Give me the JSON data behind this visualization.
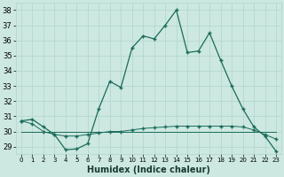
{
  "xlabel": "Humidex (Indice chaleur)",
  "bg_color": "#cce8e0",
  "grid_color": "#b0d4cc",
  "line_color": "#1a6b5a",
  "hours": [
    0,
    1,
    2,
    3,
    4,
    5,
    6,
    7,
    8,
    9,
    10,
    11,
    12,
    13,
    14,
    15,
    16,
    17,
    18,
    19,
    20,
    21,
    22,
    23
  ],
  "humidex_main": [
    30.7,
    30.8,
    30.3,
    29.8,
    28.8,
    28.85,
    29.2,
    31.5,
    33.3,
    32.9,
    35.5,
    36.3,
    36.1,
    37.0,
    38.0,
    35.2,
    35.3,
    36.5,
    34.7,
    33.0,
    31.5,
    30.3,
    29.7,
    28.7
  ],
  "humidex_ref": [
    30.7,
    30.5,
    30.0,
    29.8,
    29.7,
    29.7,
    29.8,
    29.9,
    30.0,
    30.0,
    30.1,
    30.2,
    30.25,
    30.3,
    30.35,
    30.35,
    30.35,
    30.35,
    30.35,
    30.35,
    30.3,
    30.1,
    29.8,
    29.5
  ],
  "humidex_flat": [
    30.0,
    30.0,
    30.0,
    30.0,
    30.0,
    30.0,
    30.0,
    30.0,
    30.0,
    30.0,
    30.0,
    30.0,
    30.0,
    30.0,
    30.0,
    30.0,
    30.0,
    30.0,
    30.0,
    30.0,
    30.0,
    30.0,
    30.0,
    30.0
  ],
  "ylim": [
    28.5,
    38.5
  ],
  "yticks": [
    29,
    30,
    31,
    32,
    33,
    34,
    35,
    36,
    37,
    38
  ],
  "xlim": [
    -0.5,
    23.5
  ]
}
